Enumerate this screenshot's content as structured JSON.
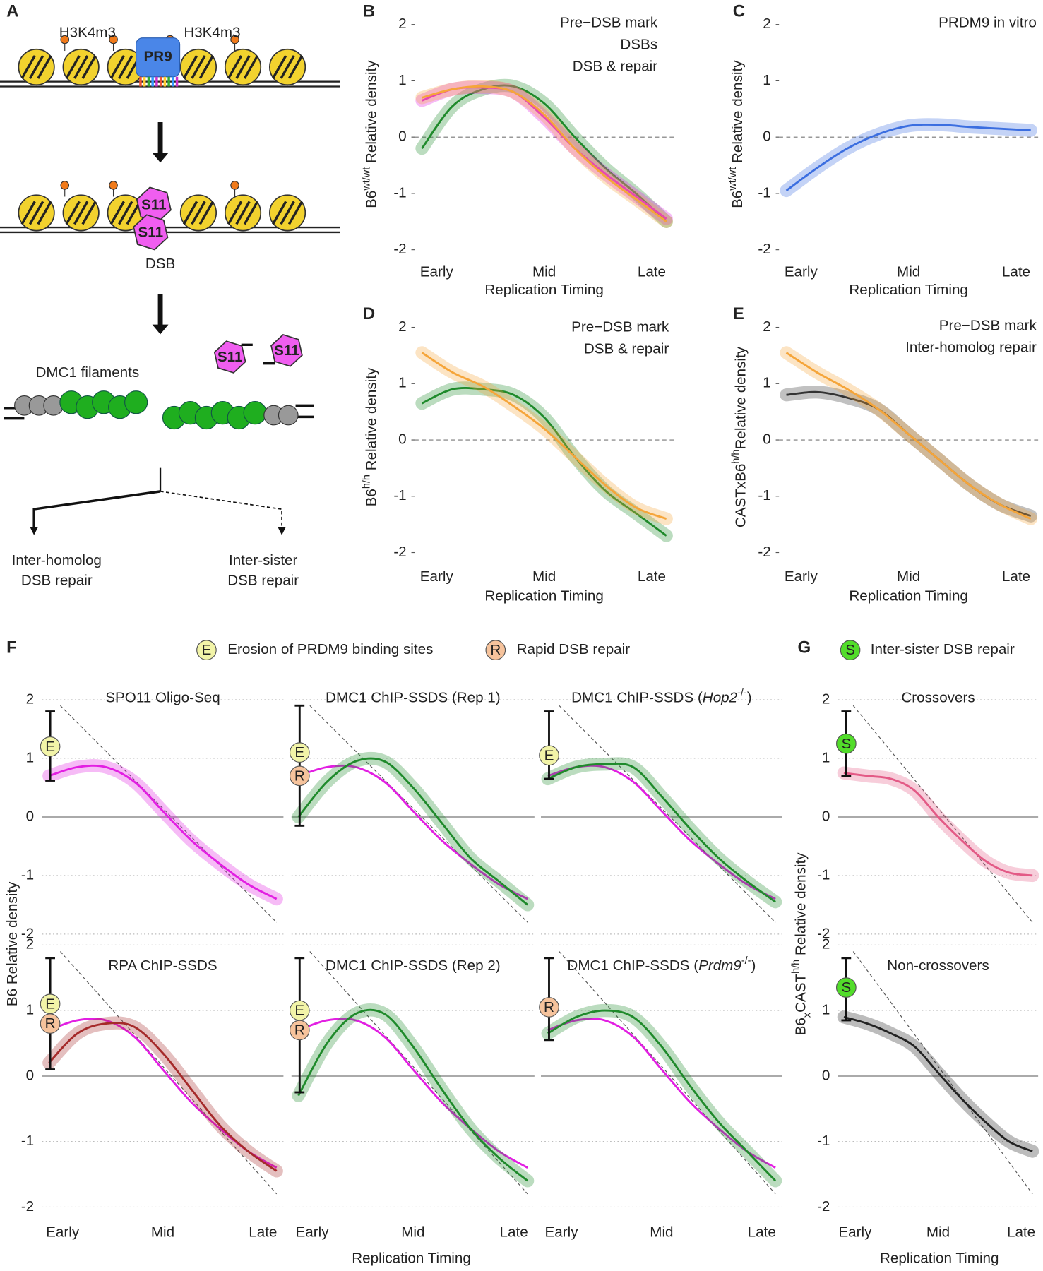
{
  "panel_labels": [
    "A",
    "B",
    "C",
    "D",
    "E",
    "F",
    "G"
  ],
  "panel_a": {
    "marks": [
      "H3K4m3",
      "H3K4m3"
    ],
    "enzyme": "PR9",
    "s11": [
      "S11",
      "S11",
      "S11",
      "S11"
    ],
    "dsb": "DSB",
    "filaments": "DMC1 filaments",
    "outcomes": [
      [
        "Inter-homolog",
        "DSB repair"
      ],
      [
        "Inter-sister",
        "DSB repair"
      ]
    ]
  },
  "legend_f": [
    {
      "badge": "E",
      "text": "Erosion of PRDM9 binding sites"
    },
    {
      "badge": "R",
      "text": "Rapid DSB repair"
    }
  ],
  "legend_g": [
    {
      "badge": "S",
      "text": "Inter-sister DSB repair"
    }
  ],
  "f_ylabel": "B6 Relative density",
  "f_xlabel": "Replication Timing",
  "g_ylabel": [
    {
      "text": "B6"
    },
    {
      "text": "x",
      "style": "sub"
    },
    {
      "text": "CAST"
    },
    {
      "text": "h/h",
      "style": "sup"
    },
    {
      "text": " Relative density"
    }
  ],
  "g_xlabel": "Replication Timing",
  "chart_data": [
    {
      "type": "line",
      "x": [
        0,
        0.125,
        0.25,
        0.375,
        0.5,
        0.625,
        0.75,
        0.875,
        1
      ],
      "xlim": [
        -0.03,
        1.03
      ],
      "ylim": [
        -2.15,
        2.25
      ],
      "yticks": [
        -2,
        -1,
        0,
        1,
        2
      ],
      "xticks": [
        {
          "value": 0.06,
          "label": "Early"
        },
        {
          "value": 0.5,
          "label": "Mid"
        },
        {
          "value": 0.94,
          "label": "Late"
        }
      ],
      "xlabel": "Replication Timing",
      "ylabel": [
        {
          "text": "B6"
        },
        {
          "text": "wt/wt",
          "style": "sup"
        },
        {
          "text": " Relative density"
        }
      ],
      "hline": {
        "value": 0,
        "style": "dashed"
      },
      "series": [
        {
          "name": "Pre−DSB mark",
          "color": "#f5a53a",
          "band": true,
          "values": [
            0.7,
            0.85,
            0.9,
            0.8,
            0.4,
            -0.2,
            -0.7,
            -1.1,
            -1.5
          ]
        },
        {
          "name": "DSBs",
          "color": "#e21fe2",
          "band": true,
          "values": [
            0.65,
            0.85,
            0.88,
            0.8,
            0.35,
            -0.2,
            -0.65,
            -1.05,
            -1.45
          ]
        },
        {
          "name": "DSB & repair",
          "color": "#1f8a2b",
          "band": true,
          "values": [
            -0.2,
            0.55,
            0.85,
            0.9,
            0.6,
            0.0,
            -0.55,
            -1.0,
            -1.5
          ]
        }
      ]
    },
    {
      "type": "line",
      "x": [
        0,
        0.125,
        0.25,
        0.375,
        0.5,
        0.625,
        0.75,
        0.875,
        1
      ],
      "xlim": [
        -0.03,
        1.03
      ],
      "ylim": [
        -2.15,
        2.25
      ],
      "yticks": [
        -2,
        -1,
        0,
        1,
        2
      ],
      "xticks": [
        {
          "value": 0.06,
          "label": "Early"
        },
        {
          "value": 0.5,
          "label": "Mid"
        },
        {
          "value": 0.94,
          "label": "Late"
        }
      ],
      "xlabel": "Replication Timing",
      "ylabel": [
        {
          "text": "B6"
        },
        {
          "text": "wt/wt",
          "style": "sup"
        },
        {
          "text": " Relative density"
        }
      ],
      "hline": {
        "value": 0,
        "style": "dashed"
      },
      "series": [
        {
          "name": "PRDM9 in vitro",
          "color": "#3b6ee0",
          "band": true,
          "values": [
            -0.95,
            -0.55,
            -0.2,
            0.05,
            0.2,
            0.22,
            0.18,
            0.15,
            0.12
          ]
        }
      ]
    },
    {
      "type": "line",
      "x": [
        0,
        0.125,
        0.25,
        0.375,
        0.5,
        0.625,
        0.75,
        0.875,
        1
      ],
      "xlim": [
        -0.03,
        1.03
      ],
      "ylim": [
        -2.15,
        2.25
      ],
      "yticks": [
        -2,
        -1,
        0,
        1,
        2
      ],
      "xticks": [
        {
          "value": 0.06,
          "label": "Early"
        },
        {
          "value": 0.5,
          "label": "Mid"
        },
        {
          "value": 0.94,
          "label": "Late"
        }
      ],
      "xlabel": "Replication Timing",
      "ylabel": [
        {
          "text": "B6"
        },
        {
          "text": "h/h",
          "style": "sup"
        },
        {
          "text": " Relative density"
        }
      ],
      "hline": {
        "value": 0,
        "style": "dashed"
      },
      "series": [
        {
          "name": "Pre−DSB mark",
          "color": "#f5a53a",
          "band": true,
          "values": [
            1.55,
            1.2,
            0.95,
            0.6,
            0.2,
            -0.3,
            -0.8,
            -1.2,
            -1.4
          ]
        },
        {
          "name": "DSB & repair",
          "color": "#1f8a2b",
          "band": true,
          "values": [
            0.65,
            0.9,
            0.9,
            0.8,
            0.4,
            -0.3,
            -0.9,
            -1.3,
            -1.7
          ]
        }
      ]
    },
    {
      "type": "line",
      "x": [
        0,
        0.125,
        0.25,
        0.375,
        0.5,
        0.625,
        0.75,
        0.875,
        1
      ],
      "xlim": [
        -0.03,
        1.03
      ],
      "ylim": [
        -2.15,
        2.25
      ],
      "yticks": [
        -2,
        -1,
        0,
        1,
        2
      ],
      "xticks": [
        {
          "value": 0.06,
          "label": "Early"
        },
        {
          "value": 0.5,
          "label": "Mid"
        },
        {
          "value": 0.94,
          "label": "Late"
        }
      ],
      "xlabel": "Replication Timing",
      "ylabel": [
        {
          "text": "CASTxB6"
        },
        {
          "text": "h/h",
          "style": "sup"
        },
        {
          "text": "Relative density"
        }
      ],
      "hline": {
        "value": 0,
        "style": "dashed"
      },
      "series": [
        {
          "name": "Pre−DSB mark",
          "color": "#f5a53a",
          "band": true,
          "values": [
            1.55,
            1.2,
            0.9,
            0.55,
            0.1,
            -0.35,
            -0.8,
            -1.15,
            -1.4
          ]
        },
        {
          "name": "Inter-homolog repair",
          "color": "#333333",
          "band": true,
          "values": [
            0.8,
            0.85,
            0.75,
            0.55,
            0.1,
            -0.35,
            -0.8,
            -1.15,
            -1.35
          ]
        }
      ]
    },
    {
      "type": "line",
      "title": [
        {
          "text": "SPO11 Oligo-Seq"
        }
      ],
      "x": [
        0,
        0.125,
        0.25,
        0.375,
        0.5,
        0.625,
        0.75,
        0.875,
        1
      ],
      "xlim": [
        -0.03,
        1.03
      ],
      "ylim": [
        -2.1,
        2.35
      ],
      "yticks": [
        -2,
        -1,
        0,
        1,
        2
      ],
      "grid": "dotted",
      "hline": {
        "value": 0,
        "style": "solid"
      },
      "reference_line": {
        "x": [
          0.05,
          1
        ],
        "y": [
          1.9,
          -1.8
        ]
      },
      "range_bar": [
        0.62,
        1.8
      ],
      "badges": [
        {
          "label": "E",
          "value": 1.2
        }
      ],
      "series": [
        {
          "color": "#e21fe2",
          "band": true,
          "values": [
            0.7,
            0.85,
            0.85,
            0.6,
            0.1,
            -0.4,
            -0.8,
            -1.15,
            -1.4
          ]
        }
      ]
    },
    {
      "type": "line",
      "title": [
        {
          "text": "DMC1 ChIP-SSDS (Rep 1)"
        }
      ],
      "x": [
        0,
        0.125,
        0.25,
        0.375,
        0.5,
        0.625,
        0.75,
        0.875,
        1
      ],
      "xlim": [
        -0.03,
        1.03
      ],
      "ylim": [
        -2.1,
        2.35
      ],
      "yticks": [
        -2,
        -1,
        0,
        1,
        2
      ],
      "grid": "dotted",
      "hline": {
        "value": 0,
        "style": "solid"
      },
      "reference_line": {
        "x": [
          0.05,
          1
        ],
        "y": [
          1.9,
          -1.8
        ]
      },
      "range_bar": [
        -0.15,
        1.9
      ],
      "badges": [
        {
          "label": "E",
          "value": 1.1
        },
        {
          "label": "R",
          "value": 0.7
        }
      ],
      "series": [
        {
          "color": "#1f8a2b",
          "band": true,
          "values": [
            0.0,
            0.6,
            0.95,
            0.95,
            0.5,
            -0.1,
            -0.7,
            -1.1,
            -1.5
          ]
        },
        {
          "color": "#e21fe2",
          "values": [
            0.7,
            0.85,
            0.85,
            0.6,
            0.1,
            -0.4,
            -0.8,
            -1.15,
            -1.4
          ]
        }
      ]
    },
    {
      "type": "line",
      "title": [
        {
          "text": "DMC1 ChIP-SSDS ("
        },
        {
          "text": "Hop2",
          "style": "italic"
        },
        {
          "text": "-/-",
          "style": "sup"
        },
        {
          "text": ")"
        }
      ],
      "x": [
        0,
        0.125,
        0.25,
        0.375,
        0.5,
        0.625,
        0.75,
        0.875,
        1
      ],
      "xlim": [
        -0.03,
        1.03
      ],
      "ylim": [
        -2.1,
        2.35
      ],
      "yticks": [
        -2,
        -1,
        0,
        1,
        2
      ],
      "grid": "dotted",
      "hline": {
        "value": 0,
        "style": "solid"
      },
      "reference_line": {
        "x": [
          0.05,
          1
        ],
        "y": [
          1.9,
          -1.8
        ]
      },
      "range_bar": [
        0.65,
        1.8
      ],
      "badges": [
        {
          "label": "E",
          "value": 1.05
        }
      ],
      "series": [
        {
          "color": "#1f8a2b",
          "band": true,
          "values": [
            0.65,
            0.85,
            0.9,
            0.85,
            0.35,
            -0.2,
            -0.7,
            -1.1,
            -1.45
          ]
        },
        {
          "color": "#e21fe2",
          "values": [
            0.7,
            0.85,
            0.85,
            0.6,
            0.1,
            -0.4,
            -0.8,
            -1.15,
            -1.4
          ]
        }
      ]
    },
    {
      "type": "line",
      "title": [
        {
          "text": "RPA ChIP-SSDS"
        }
      ],
      "x": [
        0,
        0.125,
        0.25,
        0.375,
        0.5,
        0.625,
        0.75,
        0.875,
        1
      ],
      "xlim": [
        -0.03,
        1.03
      ],
      "ylim": [
        -2.2,
        2.2
      ],
      "yticks": [
        -2,
        -1,
        0,
        1,
        2
      ],
      "grid": "dotted",
      "hline": {
        "value": 0,
        "style": "solid"
      },
      "xticks": [
        {
          "value": 0.06,
          "label": "Early"
        },
        {
          "value": 0.5,
          "label": "Mid"
        },
        {
          "value": 0.94,
          "label": "Late"
        }
      ],
      "reference_line": {
        "x": [
          0.05,
          1
        ],
        "y": [
          1.9,
          -1.8
        ]
      },
      "range_bar": [
        0.1,
        1.8
      ],
      "badges": [
        {
          "label": "E",
          "value": 1.1
        },
        {
          "label": "R",
          "value": 0.8
        }
      ],
      "series": [
        {
          "color": "#a52a2a",
          "band": true,
          "values": [
            0.2,
            0.65,
            0.8,
            0.75,
            0.35,
            -0.2,
            -0.75,
            -1.15,
            -1.45
          ]
        },
        {
          "color": "#e21fe2",
          "values": [
            0.7,
            0.85,
            0.85,
            0.6,
            0.1,
            -0.4,
            -0.8,
            -1.15,
            -1.4
          ]
        }
      ]
    },
    {
      "type": "line",
      "title": [
        {
          "text": "DMC1 ChIP-SSDS (Rep 2)"
        }
      ],
      "x": [
        0,
        0.125,
        0.25,
        0.375,
        0.5,
        0.625,
        0.75,
        0.875,
        1
      ],
      "xlim": [
        -0.03,
        1.03
      ],
      "ylim": [
        -2.2,
        2.2
      ],
      "yticks": [
        -2,
        -1,
        0,
        1,
        2
      ],
      "grid": "dotted",
      "hline": {
        "value": 0,
        "style": "solid"
      },
      "xticks": [
        {
          "value": 0.06,
          "label": "Early"
        },
        {
          "value": 0.5,
          "label": "Mid"
        },
        {
          "value": 0.94,
          "label": "Late"
        }
      ],
      "reference_line": {
        "x": [
          0.05,
          1
        ],
        "y": [
          1.9,
          -1.8
        ]
      },
      "range_bar": [
        -0.25,
        1.8
      ],
      "badges": [
        {
          "label": "E",
          "value": 1.0
        },
        {
          "label": "R",
          "value": 0.7
        }
      ],
      "series": [
        {
          "color": "#1f8a2b",
          "band": true,
          "values": [
            -0.3,
            0.5,
            0.95,
            0.95,
            0.45,
            -0.2,
            -0.8,
            -1.25,
            -1.6
          ]
        },
        {
          "color": "#e21fe2",
          "values": [
            0.7,
            0.85,
            0.85,
            0.6,
            0.1,
            -0.4,
            -0.8,
            -1.15,
            -1.4
          ]
        }
      ]
    },
    {
      "type": "line",
      "title": [
        {
          "text": "DMC1 ChIP-SSDS ("
        },
        {
          "text": "Prdm9",
          "style": "italic"
        },
        {
          "text": "-/-",
          "style": "sup"
        },
        {
          "text": ")"
        }
      ],
      "x": [
        0,
        0.125,
        0.25,
        0.375,
        0.5,
        0.625,
        0.75,
        0.875,
        1
      ],
      "xlim": [
        -0.03,
        1.03
      ],
      "ylim": [
        -2.2,
        2.2
      ],
      "yticks": [
        -2,
        -1,
        0,
        1,
        2
      ],
      "grid": "dotted",
      "hline": {
        "value": 0,
        "style": "solid"
      },
      "xticks": [
        {
          "value": 0.06,
          "label": "Early"
        },
        {
          "value": 0.5,
          "label": "Mid"
        },
        {
          "value": 0.94,
          "label": "Late"
        }
      ],
      "reference_line": {
        "x": [
          0.05,
          1
        ],
        "y": [
          1.9,
          -1.8
        ]
      },
      "range_bar": [
        0.55,
        1.8
      ],
      "badges": [
        {
          "label": "R",
          "value": 1.05
        }
      ],
      "series": [
        {
          "color": "#1f8a2b",
          "band": true,
          "values": [
            0.65,
            0.9,
            1.0,
            0.9,
            0.45,
            -0.15,
            -0.7,
            -1.15,
            -1.6
          ]
        },
        {
          "color": "#e21fe2",
          "values": [
            0.7,
            0.85,
            0.85,
            0.6,
            0.1,
            -0.4,
            -0.8,
            -1.15,
            -1.4
          ]
        }
      ]
    },
    {
      "type": "line",
      "title": [
        {
          "text": "Crossovers"
        }
      ],
      "x": [
        0,
        0.125,
        0.25,
        0.375,
        0.5,
        0.625,
        0.75,
        0.875,
        1
      ],
      "xlim": [
        -0.03,
        1.03
      ],
      "ylim": [
        -2.1,
        2.35
      ],
      "yticks": [
        -2,
        -1,
        0,
        1,
        2
      ],
      "grid": "dotted",
      "hline": {
        "value": 0,
        "style": "solid"
      },
      "reference_line": {
        "x": [
          0.05,
          1
        ],
        "y": [
          1.9,
          -1.8
        ]
      },
      "range_bar": [
        0.7,
        1.8
      ],
      "badges": [
        {
          "label": "S",
          "value": 1.25
        }
      ],
      "series": [
        {
          "color": "#e35a86",
          "band": true,
          "values": [
            0.75,
            0.7,
            0.65,
            0.45,
            0.0,
            -0.4,
            -0.75,
            -0.95,
            -1.0
          ]
        }
      ]
    },
    {
      "type": "line",
      "title": [
        {
          "text": "Non-crossovers"
        }
      ],
      "x": [
        0,
        0.125,
        0.25,
        0.375,
        0.5,
        0.625,
        0.75,
        0.875,
        1
      ],
      "xlim": [
        -0.03,
        1.03
      ],
      "ylim": [
        -2.2,
        2.2
      ],
      "yticks": [
        -2,
        -1,
        0,
        1,
        2
      ],
      "grid": "dotted",
      "hline": {
        "value": 0,
        "style": "solid"
      },
      "xticks": [
        {
          "value": 0.06,
          "label": "Early"
        },
        {
          "value": 0.5,
          "label": "Mid"
        },
        {
          "value": 0.94,
          "label": "Late"
        }
      ],
      "reference_line": {
        "x": [
          0.05,
          1
        ],
        "y": [
          1.9,
          -1.8
        ]
      },
      "range_bar": [
        0.85,
        1.8
      ],
      "badges": [
        {
          "label": "S",
          "value": 1.35
        }
      ],
      "series": [
        {
          "color": "#222222",
          "band": true,
          "values": [
            0.9,
            0.8,
            0.65,
            0.45,
            0.05,
            -0.35,
            -0.7,
            -1.0,
            -1.15
          ]
        }
      ]
    }
  ]
}
